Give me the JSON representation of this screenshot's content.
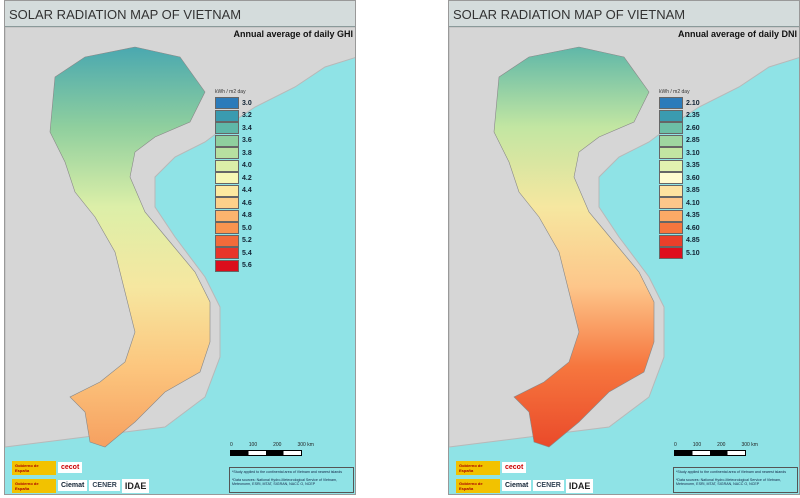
{
  "maps": [
    {
      "title": "SOLAR RADIATION MAP OF VIETNAM",
      "subtitle": "Annual average of daily GHI",
      "unit": "kWh / m2 day",
      "legend": [
        [
          "3.0",
          "#2b7bba"
        ],
        [
          "3.2",
          "#3a9bb0"
        ],
        [
          "3.4",
          "#5fb7a8"
        ],
        [
          "3.6",
          "#8fcf9e"
        ],
        [
          "3.8",
          "#b7e0a0"
        ],
        [
          "4.0",
          "#dcefa8"
        ],
        [
          "4.2",
          "#f6f7b5"
        ],
        [
          "4.4",
          "#fde9a0"
        ],
        [
          "4.6",
          "#fdd08a"
        ],
        [
          "4.8",
          "#fcb46e"
        ],
        [
          "5.0",
          "#f9944f"
        ],
        [
          "5.2",
          "#f26b3a"
        ],
        [
          "5.4",
          "#e8352a"
        ],
        [
          "5.6",
          "#dc0d1c"
        ]
      ],
      "gradient": [
        "#4aa8b0",
        "#8fcf9e",
        "#dcefa8",
        "#f6e7a0",
        "#fcc67e",
        "#f6a060"
      ]
    },
    {
      "title": "SOLAR RADIATION MAP OF VIETNAM",
      "subtitle": "Annual average of daily DNI",
      "unit": "kWh / m2 day",
      "legend": [
        [
          "2.10",
          "#2b7bba"
        ],
        [
          "2.35",
          "#3a9bb0"
        ],
        [
          "2.60",
          "#6dbfa6"
        ],
        [
          "2.85",
          "#9fd6a0"
        ],
        [
          "3.10",
          "#c2e6a2"
        ],
        [
          "3.35",
          "#e2f2b0"
        ],
        [
          "3.60",
          "#fffbd0"
        ],
        [
          "3.85",
          "#fde2a0"
        ],
        [
          "4.10",
          "#fdc68a"
        ],
        [
          "4.35",
          "#fcaa66"
        ],
        [
          "4.60",
          "#f6763e"
        ],
        [
          "4.85",
          "#ea3f2a"
        ],
        [
          "5.10",
          "#de0e1c"
        ]
      ],
      "gradient": [
        "#5fb7a8",
        "#c2e6a2",
        "#f6e7a0",
        "#fdc68a",
        "#f6763e",
        "#ea4a2a"
      ]
    }
  ],
  "scale": [
    "0",
    "100",
    "200",
    "300 km"
  ],
  "notes": [
    "*Study applied to the continental area of Vietnam and nearest islands",
    "*Data sources: National Hydro-Meteorological Service of Vietnam, Meteonorm, ESRI, MTAT, SIGRAN, NACC O, NCEP"
  ],
  "logos": [
    "Gobierno de España",
    "cecot",
    "Ciemat",
    "CENER",
    "IDAE"
  ]
}
